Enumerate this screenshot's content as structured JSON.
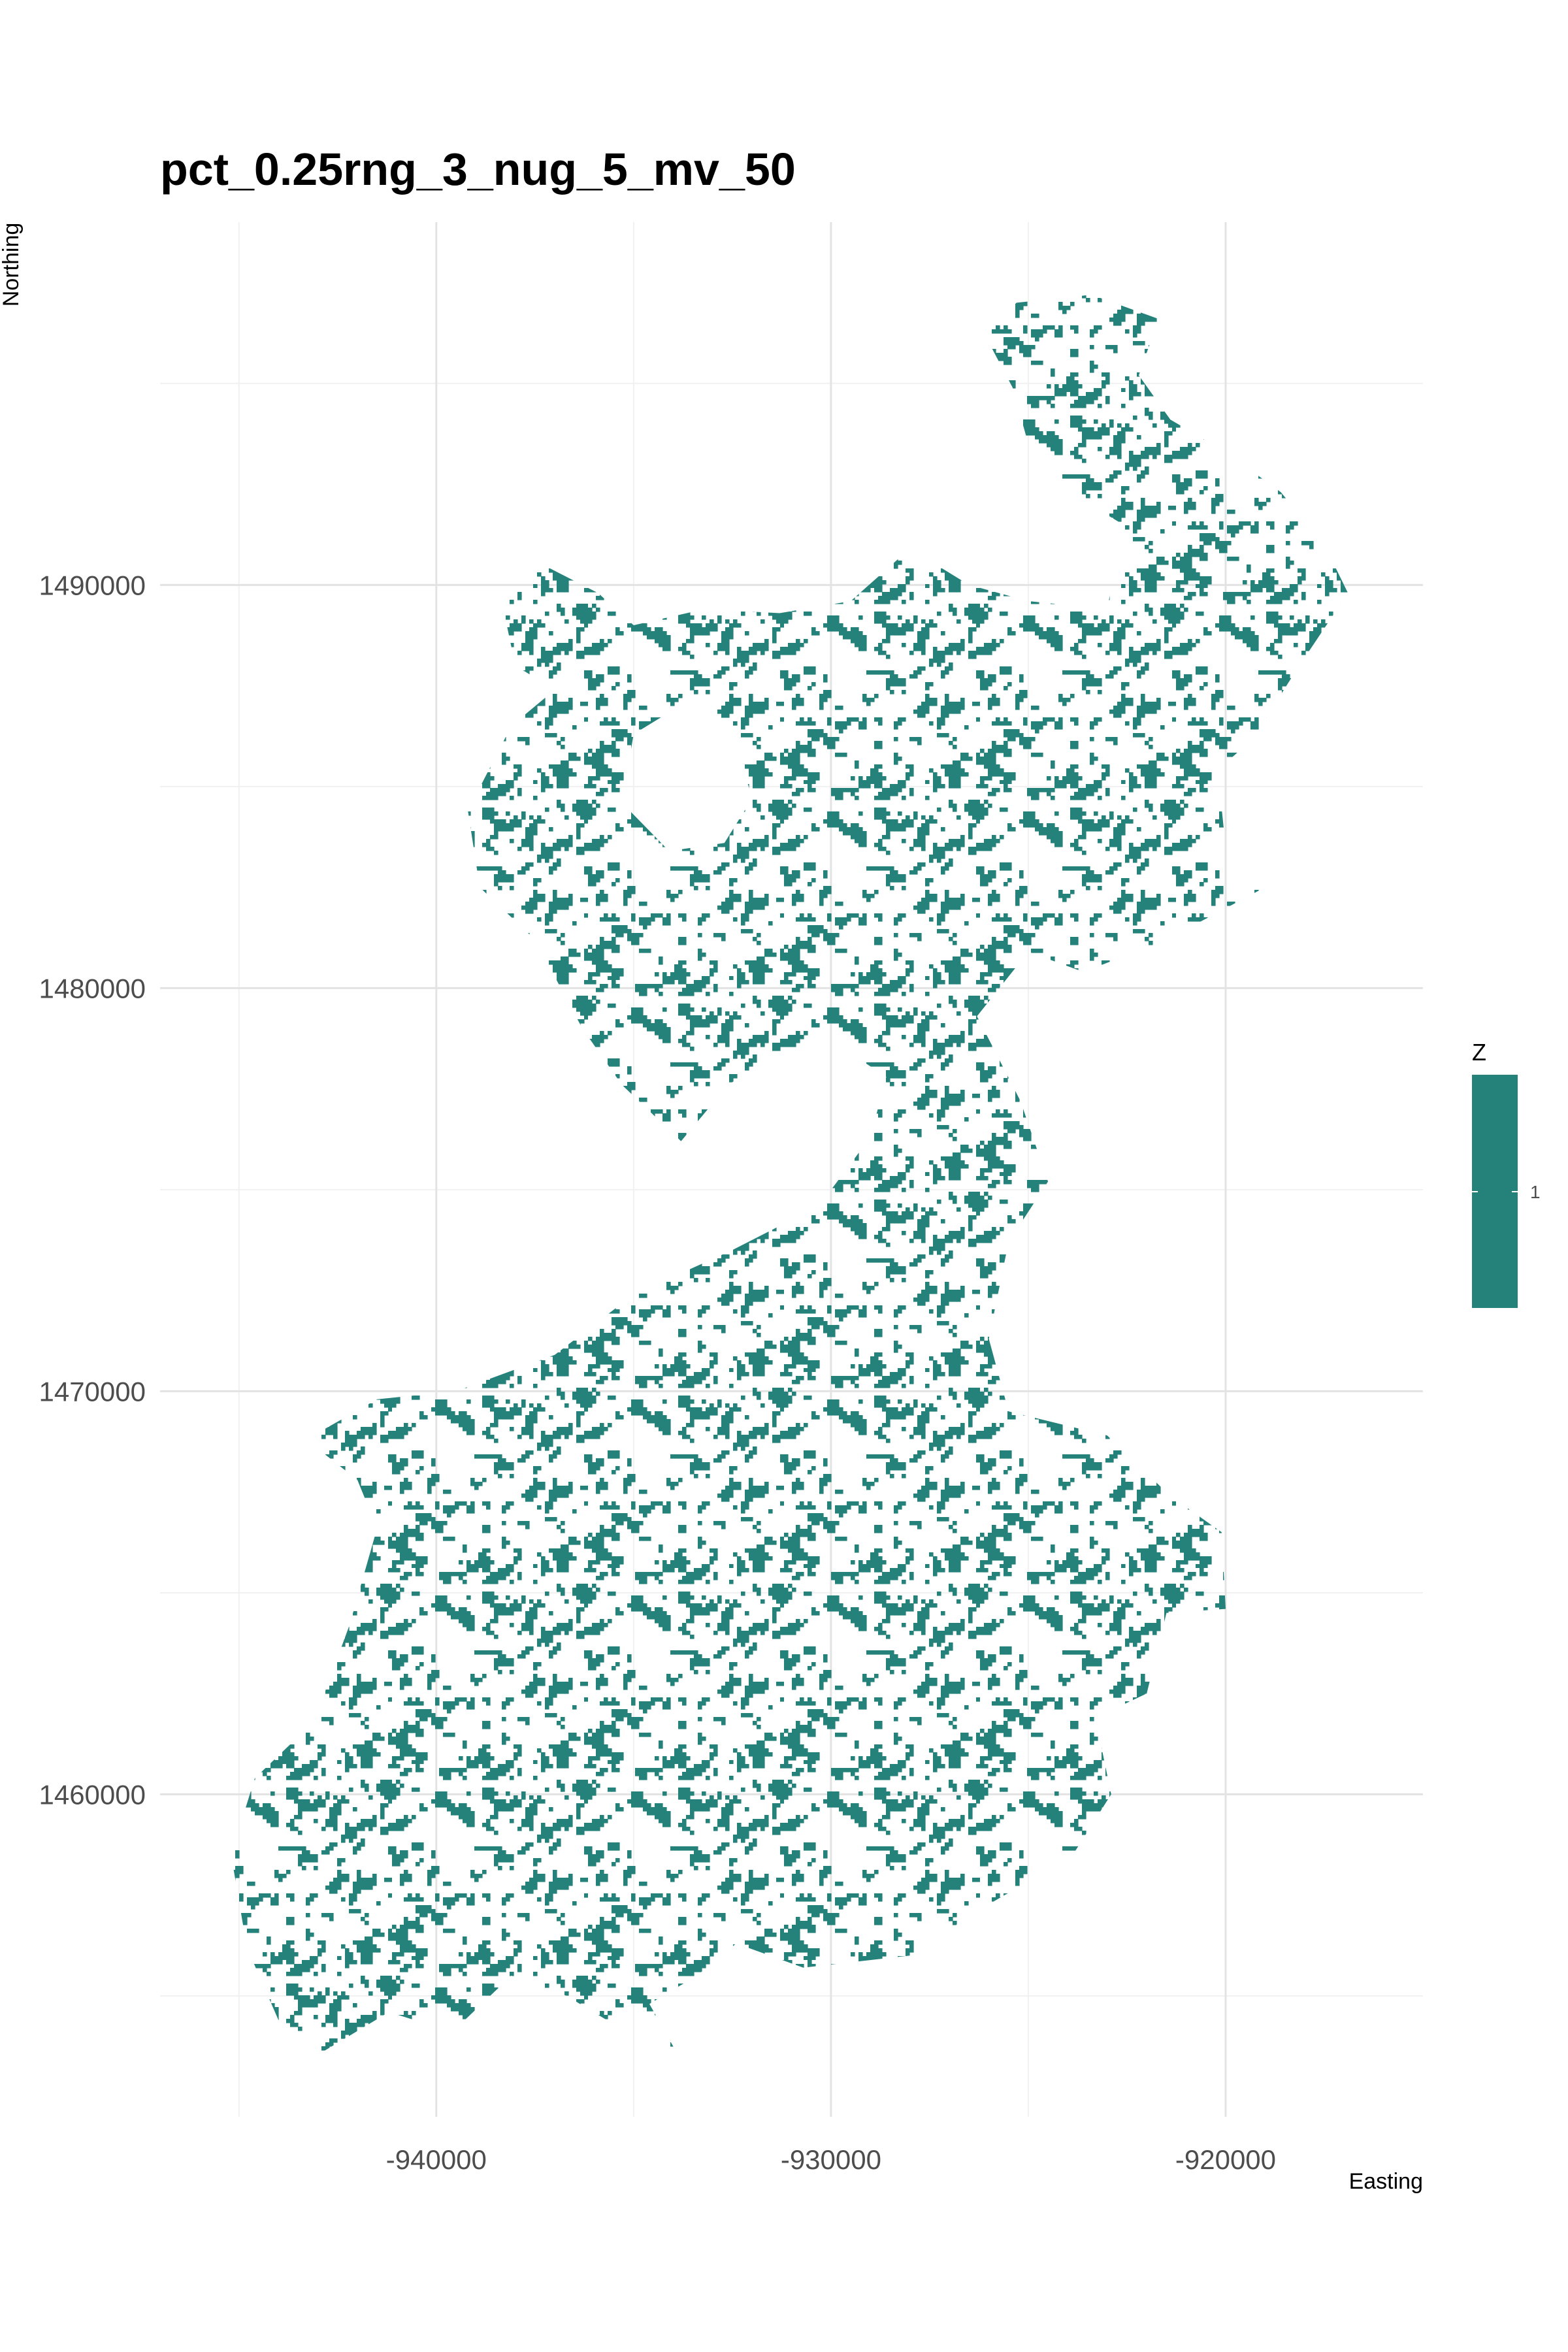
{
  "title": "pct_0.25rng_3_nug_5_mv_50",
  "axes": {
    "x_label": "Easting",
    "y_label": "Northing",
    "x_ticks": [
      {
        "value": -940000,
        "label": "-940000"
      },
      {
        "value": -930000,
        "label": "-930000"
      },
      {
        "value": -920000,
        "label": "-920000"
      }
    ],
    "x_minor": [
      -945000,
      -935000,
      -925000
    ],
    "y_ticks": [
      {
        "value": 1460000,
        "label": "1460000"
      },
      {
        "value": 1470000,
        "label": "1470000"
      },
      {
        "value": 1480000,
        "label": "1480000"
      },
      {
        "value": 1490000,
        "label": "1490000"
      }
    ],
    "y_minor": [
      1455000,
      1465000,
      1475000,
      1485000,
      1495000
    ]
  },
  "legend": {
    "title": "Z",
    "items": [
      {
        "label": "1",
        "color": "#25827A"
      }
    ]
  },
  "colors": {
    "fill": "#25827A",
    "grid_major": "#e3e3e3",
    "grid_minor": "#f1f1f1",
    "tick_text": "#4d4d4d"
  },
  "chart_data": {
    "type": "heatmap",
    "title": "pct_0.25rng_3_nug_5_mv_50",
    "xlabel": "Easting",
    "ylabel": "Northing",
    "xlim": [
      -947000,
      -915000
    ],
    "ylim": [
      1452000,
      1499000
    ],
    "grid": true,
    "legend_position": "right",
    "value": 1,
    "coverage_fraction": 0.25,
    "region_outline": [
      [
        -944.8,
        1456.2
      ],
      [
        -945.2,
        1458.5
      ],
      [
        -944.6,
        1460.4
      ],
      [
        -943.1,
        1461.8
      ],
      [
        -942.2,
        1464.2
      ],
      [
        -941.5,
        1466.6
      ],
      [
        -942.0,
        1467.8
      ],
      [
        -943.3,
        1468.8
      ],
      [
        -941.5,
        1469.8
      ],
      [
        -939.5,
        1470.0
      ],
      [
        -937.0,
        1470.9
      ],
      [
        -935.0,
        1472.4
      ],
      [
        -932.5,
        1473.5
      ],
      [
        -930.3,
        1474.6
      ],
      [
        -929.0,
        1476.3
      ],
      [
        -928.6,
        1477.8
      ],
      [
        -930.0,
        1478.7
      ],
      [
        -931.5,
        1478.3
      ],
      [
        -932.6,
        1477.6
      ],
      [
        -933.8,
        1476.2
      ],
      [
        -935.3,
        1477.6
      ],
      [
        -936.3,
        1479.0
      ],
      [
        -937.5,
        1481.2
      ],
      [
        -938.9,
        1482.5
      ],
      [
        -939.2,
        1484.4
      ],
      [
        -938.1,
        1486.5
      ],
      [
        -937.0,
        1487.4
      ],
      [
        -938.0,
        1488.0
      ],
      [
        -938.3,
        1489.4
      ],
      [
        -937.5,
        1490.6
      ],
      [
        -935.9,
        1489.8
      ],
      [
        -935.0,
        1489.0
      ],
      [
        -933.2,
        1489.4
      ],
      [
        -931.3,
        1489.3
      ],
      [
        -929.5,
        1489.6
      ],
      [
        -928.0,
        1490.9
      ],
      [
        -926.5,
        1490.0
      ],
      [
        -925.0,
        1489.6
      ],
      [
        -923.0,
        1489.4
      ],
      [
        -922.6,
        1491.5
      ],
      [
        -924.8,
        1492.8
      ],
      [
        -925.4,
        1494.9
      ],
      [
        -926.1,
        1496.2
      ],
      [
        -925.3,
        1497.0
      ],
      [
        -923.4,
        1497.2
      ],
      [
        -921.7,
        1496.6
      ],
      [
        -922.2,
        1495.2
      ],
      [
        -921.4,
        1494.1
      ],
      [
        -920.0,
        1493.3
      ],
      [
        -918.6,
        1492.3
      ],
      [
        -917.5,
        1491.0
      ],
      [
        -916.9,
        1489.8
      ],
      [
        -918.2,
        1487.9
      ],
      [
        -919.3,
        1486.2
      ],
      [
        -920.2,
        1485.4
      ],
      [
        -920.0,
        1483.5
      ],
      [
        -919.0,
        1482.5
      ],
      [
        -921.5,
        1481.2
      ],
      [
        -923.6,
        1480.4
      ],
      [
        -925.0,
        1480.9
      ],
      [
        -926.3,
        1479.3
      ],
      [
        -925.2,
        1477.2
      ],
      [
        -924.5,
        1475.2
      ],
      [
        -925.5,
        1473.7
      ],
      [
        -926.0,
        1471.3
      ],
      [
        -925.5,
        1469.5
      ],
      [
        -923.0,
        1468.9
      ],
      [
        -921.4,
        1467.4
      ],
      [
        -920.1,
        1466.5
      ],
      [
        -920.0,
        1464.6
      ],
      [
        -921.5,
        1464.5
      ],
      [
        -922.0,
        1462.5
      ],
      [
        -923.3,
        1461.9
      ],
      [
        -922.9,
        1460.0
      ],
      [
        -924.0,
        1458.3
      ],
      [
        -925.6,
        1457.5
      ],
      [
        -926.3,
        1457.1
      ],
      [
        -928.0,
        1456.0
      ],
      [
        -930.7,
        1455.7
      ],
      [
        -932.4,
        1456.3
      ],
      [
        -933.4,
        1455.5
      ],
      [
        -934.6,
        1454.8
      ],
      [
        -933.8,
        1453.4
      ],
      [
        -935.0,
        1454.0
      ],
      [
        -936.7,
        1455.0
      ],
      [
        -938.1,
        1455.5
      ],
      [
        -939.6,
        1454.1
      ],
      [
        -941.2,
        1454.6
      ],
      [
        -942.9,
        1453.6
      ],
      [
        -944.0,
        1454.4
      ]
    ],
    "hole_outline": [
      [
        -935.0,
        1486.3
      ],
      [
        -933.5,
        1487.2
      ],
      [
        -932.5,
        1486.4
      ],
      [
        -932.0,
        1484.7
      ],
      [
        -932.7,
        1483.6
      ],
      [
        -934.1,
        1483.4
      ],
      [
        -935.3,
        1484.6
      ]
    ]
  }
}
